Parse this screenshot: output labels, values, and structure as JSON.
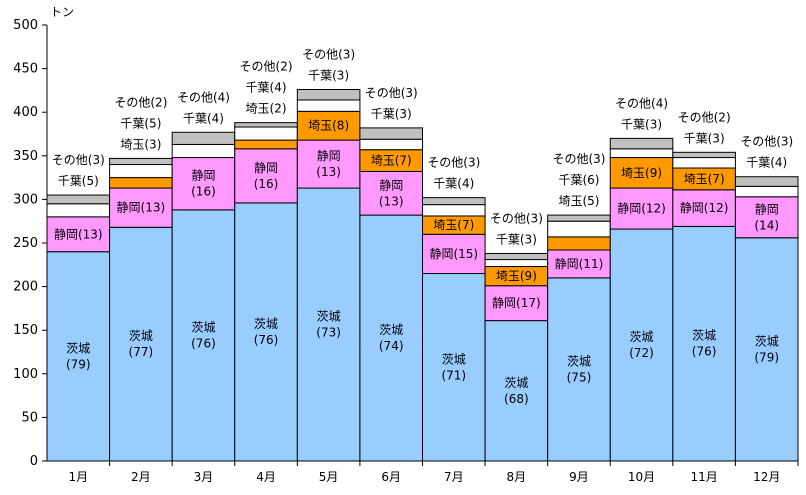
{
  "chart_data": {
    "type": "bar",
    "stacked": true,
    "title": "",
    "ylabel": "トン",
    "xlabel": "",
    "ylim": [
      0,
      500
    ],
    "yticks": [
      0,
      50,
      100,
      150,
      200,
      250,
      300,
      350,
      400,
      450,
      500
    ],
    "categories": [
      "1月",
      "2月",
      "3月",
      "4月",
      "5月",
      "6月",
      "7月",
      "8月",
      "9月",
      "10月",
      "11月",
      "12月"
    ],
    "series": [
      {
        "name": "茨城",
        "color": "#99ccff",
        "values": [
          240,
          268,
          288,
          296,
          313,
          282,
          215,
          161,
          210,
          266,
          269,
          256
        ]
      },
      {
        "name": "静岡",
        "color": "#ff99ff",
        "values": [
          40,
          45,
          60,
          62,
          55,
          50,
          45,
          40,
          32,
          47,
          42,
          47
        ]
      },
      {
        "name": "埼玉",
        "color": "#ff9900",
        "values": [
          0,
          12,
          0,
          10,
          33,
          25,
          21,
          22,
          15,
          35,
          25,
          0
        ]
      },
      {
        "name": "千葉",
        "color": "#ffffff",
        "values": [
          15,
          15,
          15,
          15,
          13,
          12,
          13,
          8,
          18,
          10,
          12,
          12
        ]
      },
      {
        "name": "その他",
        "color": "#c0c0c0",
        "values": [
          10,
          7,
          14,
          5,
          12,
          13,
          8,
          7,
          7,
          12,
          6,
          11
        ]
      }
    ],
    "labels": {
      "茨城": [
        "茨城\n(79)",
        "茨城\n(77)",
        "茨城\n(76)",
        "茨城\n(76)",
        "茨城\n(73)",
        "茨城\n(74)",
        "茨城\n(71)",
        "茨城\n(68)",
        "茨城\n(75)",
        "茨城\n(72)",
        "茨城\n(76)",
        "茨城\n(79)"
      ],
      "静岡": [
        "静岡(13)",
        "静岡(13)",
        "静岡\n(16)",
        "静岡\n(16)",
        "静岡\n(13)",
        "静岡\n(13)",
        "静岡(15)",
        "静岡(17)",
        "静岡(11)",
        "静岡(12)",
        "静岡(12)",
        "静岡\n(14)"
      ],
      "埼玉": [
        "",
        "埼玉(3)",
        "",
        "埼玉(2)",
        "埼玉(8)",
        "埼玉(7)",
        "埼玉(7)",
        "埼玉(9)",
        "埼玉(5)",
        "埼玉(9)",
        "埼玉(7)",
        ""
      ],
      "千葉": [
        "千葉(5)",
        "千葉(5)",
        "千葉(4)",
        "千葉(4)",
        "千葉(3)",
        "千葉(3)",
        "千葉(4)",
        "千葉(3)",
        "千葉(6)",
        "千葉(3)",
        "千葉(3)",
        "千葉(4)"
      ],
      "その他": [
        "その他(3)",
        "その他(2)",
        "その他(4)",
        "その他(2)",
        "その他(3)",
        "その他(3)",
        "その他(3)",
        "その他(3)",
        "その他(3)",
        "その他(4)",
        "その他(2)",
        "その他(3)"
      ]
    }
  }
}
